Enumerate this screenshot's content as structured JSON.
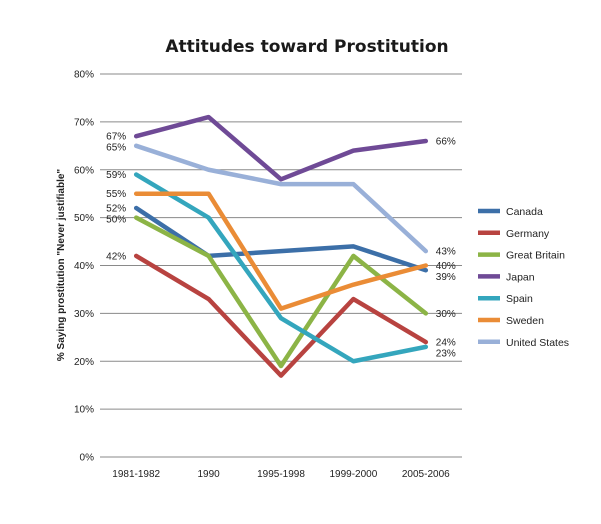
{
  "chart_data": {
    "type": "line",
    "title": "Attitudes toward Prostitution",
    "ylabel": "% Saying prostitution \"Never justifiable\"",
    "xlabel": "",
    "categories": [
      "1981-1982",
      "1990",
      "1995-1998",
      "1999-2000",
      "2005-2006"
    ],
    "ylim": [
      0,
      80
    ],
    "yticks": [
      0,
      10,
      20,
      30,
      40,
      50,
      60,
      70,
      80
    ],
    "ytick_labels": [
      "0%",
      "10%",
      "20%",
      "30%",
      "40%",
      "50%",
      "60%",
      "70%",
      "80%"
    ],
    "grid": true,
    "legend_position": "right",
    "series": [
      {
        "name": "Canada",
        "color": "#3c6fa8",
        "values": [
          52,
          42,
          43,
          44,
          39
        ],
        "start_label": "52%",
        "end_label": "39%"
      },
      {
        "name": "Germany",
        "color": "#b84340",
        "values": [
          42,
          33,
          17,
          33,
          24
        ],
        "start_label": "42%",
        "end_label": "24%"
      },
      {
        "name": "Great Britain",
        "color": "#8cb446",
        "values": [
          50,
          42,
          19,
          42,
          30
        ],
        "start_label": "50%",
        "end_label": "30%"
      },
      {
        "name": "Japan",
        "color": "#6f4a96",
        "values": [
          67,
          71,
          58,
          64,
          66
        ],
        "start_label": "67%",
        "end_label": "66%"
      },
      {
        "name": "Spain",
        "color": "#34a6bd",
        "values": [
          59,
          50,
          29,
          20,
          23
        ],
        "start_label": "59%",
        "end_label": "23%"
      },
      {
        "name": "Sweden",
        "color": "#ea8c36",
        "values": [
          55,
          55,
          31,
          36,
          40
        ],
        "start_label": "55%",
        "end_label": "40%"
      },
      {
        "name": "United States",
        "color": "#99b0d8",
        "values": [
          65,
          60,
          57,
          57,
          43
        ],
        "start_label": "65%",
        "end_label": "43%"
      }
    ]
  }
}
